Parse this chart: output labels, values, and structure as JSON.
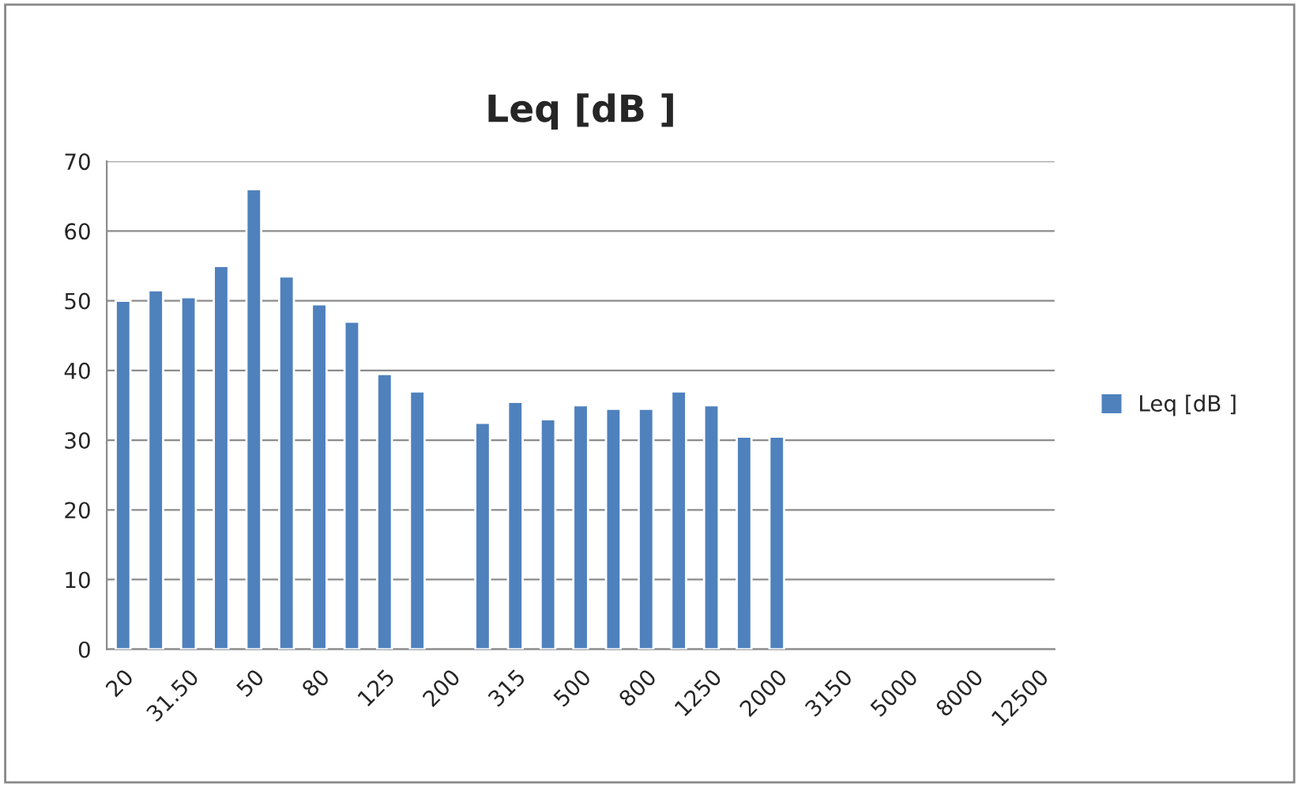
{
  "chart_data": {
    "type": "bar",
    "title": "Leq [dB ]",
    "categories": [
      "20",
      null,
      "31.50",
      null,
      "50",
      null,
      "80",
      null,
      "125",
      null,
      "200",
      null,
      "315",
      null,
      "500",
      null,
      "800",
      null,
      "1250",
      null,
      "2000",
      null,
      "3150",
      null,
      "5000",
      null,
      "8000",
      null,
      "12500"
    ],
    "series": [
      {
        "name": "Leq [dB ]",
        "color": "#4f81bd",
        "values": [
          50,
          51.5,
          50.5,
          55,
          66,
          53.5,
          49.5,
          47,
          39.5,
          37,
          null,
          32.5,
          35.5,
          33,
          35,
          34.5,
          34.5,
          37,
          35,
          30.5,
          30.5,
          null,
          null,
          null,
          null,
          null,
          null,
          null,
          null
        ]
      }
    ],
    "ylim": [
      0,
      70
    ],
    "yticks": [
      0,
      10,
      20,
      30,
      40,
      50,
      60,
      70
    ],
    "grid": "y",
    "legend": "right"
  }
}
